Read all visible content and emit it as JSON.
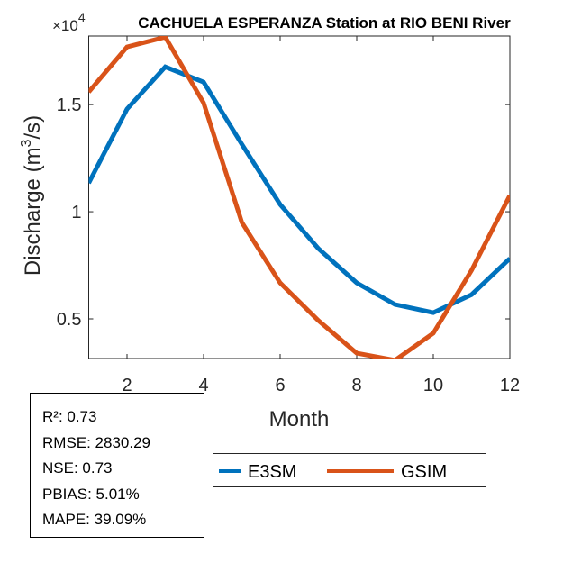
{
  "chart_data": {
    "type": "line",
    "title": "CACHUELA ESPERANZA  Station at  RIO BENI  River",
    "xlabel": "Month",
    "ylabel": "Discharge (m",
    "ylabel_sup": "3",
    "ylabel_end": "/s)",
    "y_exponent_base": "×10",
    "y_exponent": "4",
    "xlim": [
      1,
      12
    ],
    "ylim": [
      0.315,
      1.82
    ],
    "x_ticks": [
      2,
      4,
      6,
      8,
      10,
      12
    ],
    "x_tick_labels": [
      "2",
      "4",
      "6",
      "8",
      "10",
      "12"
    ],
    "y_ticks": [
      0.5,
      1,
      1.5
    ],
    "y_tick_labels": [
      "0.5",
      "1",
      "1.5"
    ],
    "grid": false,
    "x": [
      1,
      2,
      3,
      4,
      5,
      6,
      7,
      8,
      9,
      10,
      11,
      12
    ],
    "series": [
      {
        "name": "E3SM",
        "color": "#0072BD",
        "values": [
          1.134,
          1.479,
          1.676,
          1.605,
          1.315,
          1.034,
          0.828,
          0.668,
          0.567,
          0.529,
          0.613,
          0.782
        ]
      },
      {
        "name": "GSIM",
        "color": "#D95319",
        "values": [
          1.559,
          1.769,
          1.815,
          1.508,
          0.95,
          0.668,
          0.492,
          0.34,
          0.307,
          0.433,
          0.727,
          1.076
        ]
      }
    ],
    "legend_position": "bottom-center"
  },
  "stats": {
    "r2": "R²: 0.73",
    "rmse": "RMSE: 2830.29",
    "nse": "NSE: 0.73",
    "pbias": "PBIAS: 5.01%",
    "mape": "MAPE: 39.09%"
  }
}
